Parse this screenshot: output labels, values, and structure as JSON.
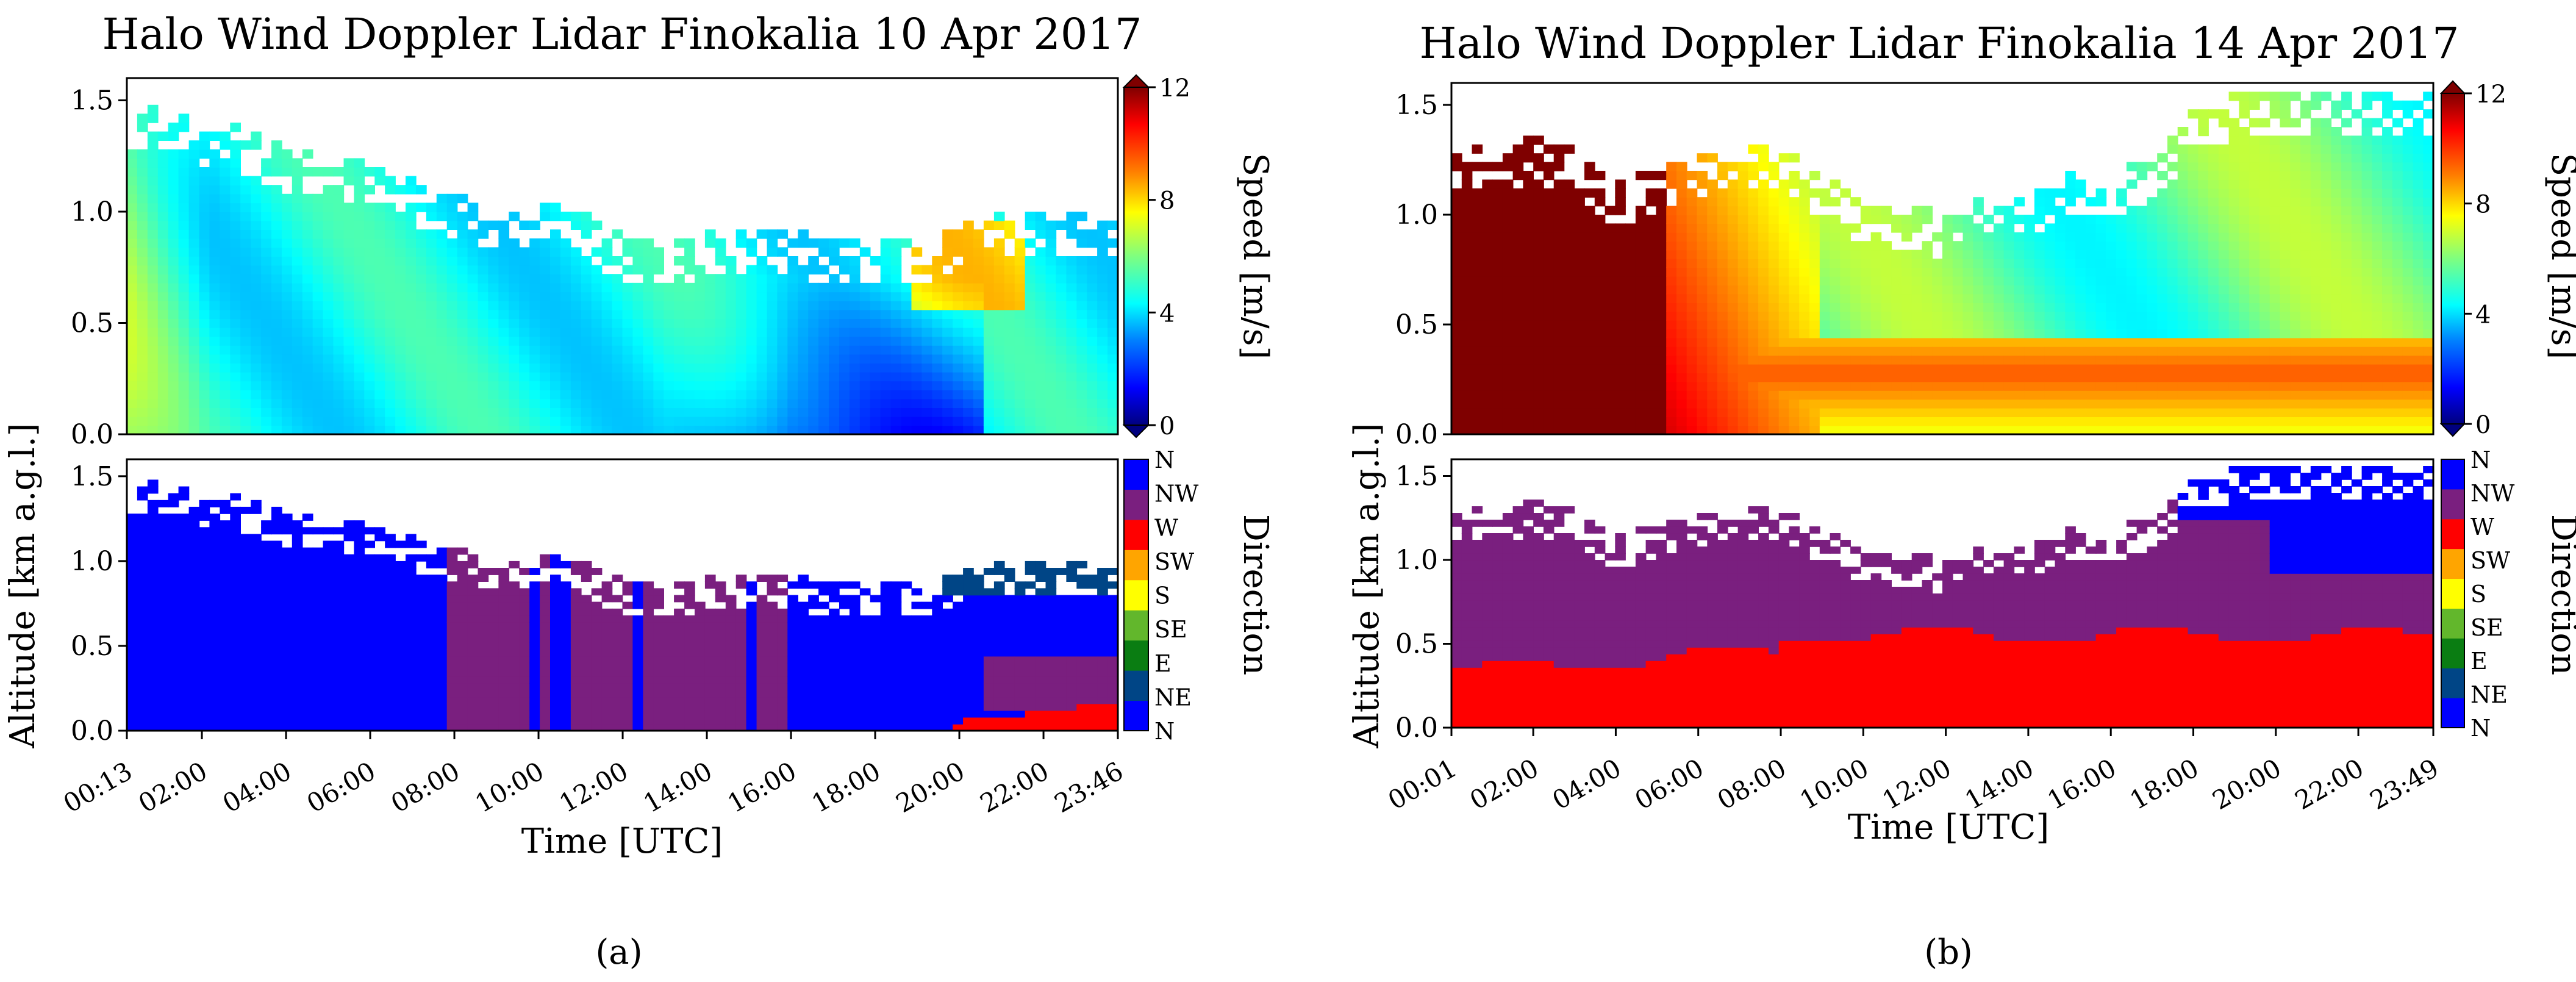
{
  "figure": {
    "panels": [
      "(a)",
      "(b)"
    ]
  },
  "colors": {
    "speed_colormap": [
      "#00007f",
      "#0000ff",
      "#007fff",
      "#00ffff",
      "#7fff7f",
      "#ffff00",
      "#ff7f00",
      "#ff0000",
      "#7f0000"
    ],
    "direction_colormap": [
      "#0000ff",
      "#004586",
      "#0a7d12",
      "#62b72c",
      "#ffff00",
      "#ffa500",
      "#ff0000",
      "#7a1f7f",
      "#0000ff"
    ]
  },
  "chart_data": [
    {
      "type": "heatmap",
      "panel_label": "(a)",
      "title": "Halo Wind Doppler Lidar Finokalia 10 Apr 2017",
      "xlabel": "Time [UTC]",
      "ylabel": "Altitude [km a.g.l.]",
      "x_range_hours": [
        0.217,
        23.767
      ],
      "x_ticks": [
        "00:13",
        "02:00",
        "04:00",
        "06:00",
        "08:00",
        "10:00",
        "12:00",
        "14:00",
        "16:00",
        "18:00",
        "20:00",
        "22:00",
        "23:46"
      ],
      "x_tick_hours": [
        0.217,
        2,
        4,
        6,
        8,
        10,
        12,
        14,
        16,
        18,
        20,
        22,
        23.767
      ],
      "ylim": [
        0,
        1.6
      ],
      "y_ticks": [
        "0.0",
        "0.5",
        "1.0",
        "1.5"
      ],
      "y_tick_values": [
        0,
        0.5,
        1.0,
        1.5
      ],
      "top_altitude_km": {
        "hours": [
          0.2,
          1,
          2,
          3,
          4,
          5,
          6,
          7,
          8,
          9,
          10,
          11,
          12,
          13,
          14,
          15,
          16,
          17,
          18,
          19,
          20,
          21,
          22,
          23,
          23.8
        ],
        "km": [
          1.45,
          1.48,
          1.42,
          1.38,
          1.3,
          1.25,
          1.22,
          1.15,
          1.08,
          1.05,
          1.05,
          1.0,
          0.9,
          0.88,
          0.9,
          0.92,
          0.92,
          0.88,
          0.88,
          0.88,
          0.95,
          1.0,
          1.02,
          1.0,
          0.98
        ]
      },
      "speed": {
        "label": "Speed [m/s]",
        "range": [
          0,
          12
        ],
        "ticks": [
          "0",
          "4",
          "8",
          "12"
        ],
        "description": "Mostly 3-6 m/s; 6-8 m/s near 00-02 UTC aloft and 19-21 UTC at 0.6-0.9 km; 1-3 m/s 14-20 UTC below 0.6 km"
      },
      "direction": {
        "label": "Direction",
        "categories": [
          "N",
          "NE",
          "E",
          "SE",
          "S",
          "SW",
          "W",
          "NW",
          "N"
        ],
        "description": "N before 08 UTC, NW 08-16 UTC, N again after 17 UTC, NE aloft after 20 UTC, W near surface after 20 UTC"
      }
    },
    {
      "type": "heatmap",
      "panel_label": "(b)",
      "title": "Halo Wind Doppler Lidar Finokalia 14 Apr 2017",
      "xlabel": "Time [UTC]",
      "ylabel": "Altitude [km a.g.l.]",
      "x_range_hours": [
        0.017,
        23.817
      ],
      "x_ticks": [
        "00:01",
        "02:00",
        "04:00",
        "06:00",
        "08:00",
        "10:00",
        "12:00",
        "14:00",
        "16:00",
        "18:00",
        "20:00",
        "22:00",
        "23:49"
      ],
      "x_tick_hours": [
        0.017,
        2,
        4,
        6,
        8,
        10,
        12,
        14,
        16,
        18,
        20,
        22,
        23.817
      ],
      "ylim": [
        0,
        1.6
      ],
      "y_ticks": [
        "0.0",
        "0.5",
        "1.0",
        "1.5"
      ],
      "y_tick_values": [
        0,
        0.5,
        1.0,
        1.5
      ],
      "top_altitude_km": {
        "hours": [
          0,
          1,
          2,
          3,
          4,
          5,
          6,
          7,
          8,
          9,
          10,
          11,
          12,
          13,
          14,
          15,
          16,
          17,
          18,
          19,
          20,
          21,
          22,
          23,
          23.8
        ],
        "km": [
          1.3,
          1.32,
          1.35,
          1.3,
          1.15,
          1.2,
          1.28,
          1.3,
          1.3,
          1.2,
          1.05,
          1.05,
          1.0,
          1.08,
          1.12,
          1.18,
          1.2,
          1.25,
          1.5,
          1.55,
          1.55,
          1.55,
          1.55,
          1.55,
          1.55
        ]
      },
      "speed": {
        "label": "Speed [m/s]",
        "range": [
          0,
          12
        ],
        "ticks": [
          "0",
          "4",
          "8",
          "12"
        ],
        "description": "Above 12 m/s 00-05 UTC, 9-11 m/s near 0.3 km through the day, 4-7 m/s aloft after 10 UTC"
      },
      "direction": {
        "label": "Direction",
        "categories": [
          "N",
          "NE",
          "E",
          "SE",
          "S",
          "SW",
          "W",
          "NW",
          "N"
        ],
        "description": "W below about 0.4-0.6 km all day, NW above, N aloft after 18 UTC"
      }
    }
  ]
}
